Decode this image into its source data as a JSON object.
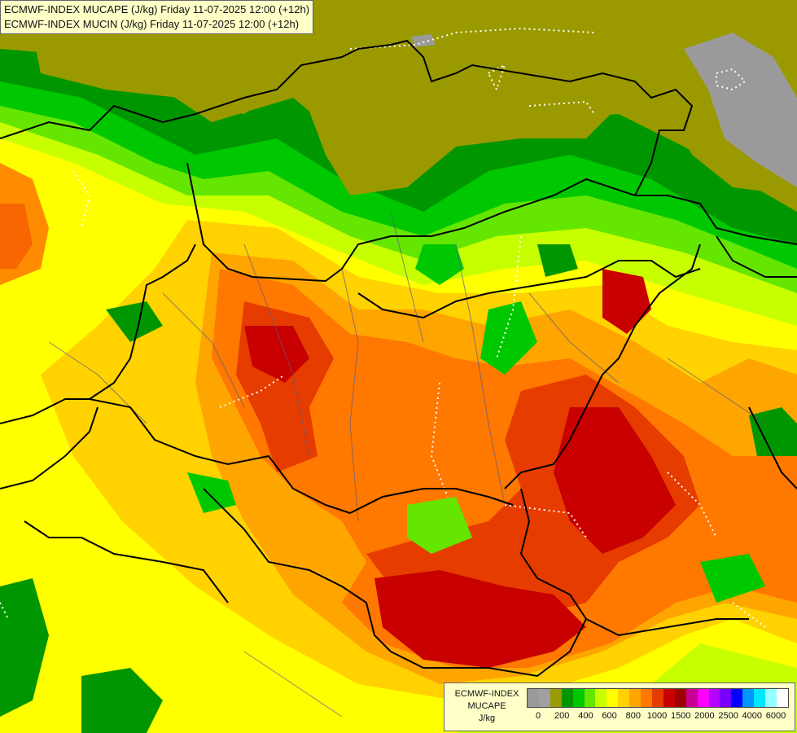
{
  "header": {
    "line1": "ECMWF-INDEX MUCAPE (J/kg) Friday 11-07-2025 12:00 (+12h)",
    "line2": "ECMWF-INDEX MUCIN (J/kg) Friday 11-07-2025 12:00 (+12h)"
  },
  "legend": {
    "title_line1": "ECMWF-INDEX",
    "title_line2": "MUCAPE",
    "unit": "J/kg",
    "colors": [
      "#9a9a9a",
      "#a0a0a0",
      "#9a9a00",
      "#009600",
      "#00c800",
      "#64e600",
      "#c8ff00",
      "#ffff00",
      "#ffd200",
      "#ffa500",
      "#ff7800",
      "#e63c00",
      "#c80000",
      "#a00000",
      "#c80096",
      "#ff00ff",
      "#b400ff",
      "#7800ff",
      "#0000ff",
      "#0096ff",
      "#00e6ff",
      "#96ffff",
      "#ffffff"
    ],
    "tick_labels": [
      "0",
      "200",
      "400",
      "600",
      "800",
      "1000",
      "1500",
      "2000",
      "2500",
      "4000",
      "6000"
    ]
  },
  "map_colors": {
    "olive": "#9a9a00",
    "dark_green": "#009600",
    "green": "#00c800",
    "light_green": "#64e600",
    "yellow_green": "#c8ff00",
    "yellow": "#ffff00",
    "gold": "#ffd200",
    "orange": "#ffa500",
    "dark_orange": "#ff7800",
    "red_orange": "#e63c00",
    "red": "#c80000",
    "dark_red": "#a00000",
    "gray": "#9a9a9a",
    "border": "#000000",
    "zero_contour": "#ffffff"
  }
}
